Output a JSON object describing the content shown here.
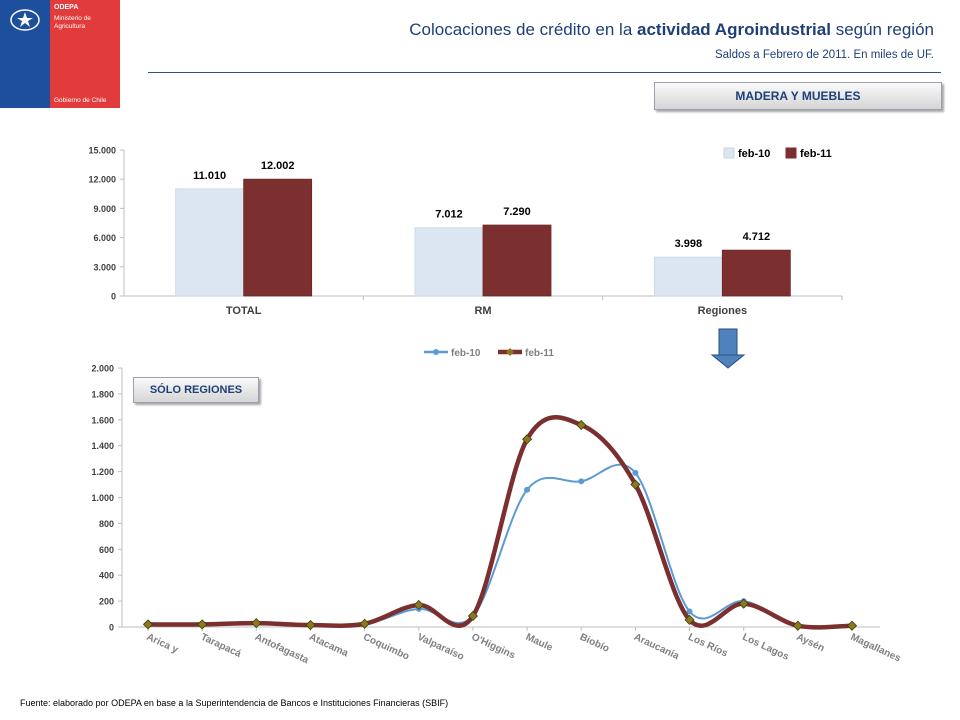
{
  "branding": {
    "org": "ODEPA",
    "ministry_line1": "Ministerio de",
    "ministry_line2": "Agricultura",
    "government": "Gobierno de Chile",
    "blue": "#1d4f9c",
    "red": "#e23b3b"
  },
  "header": {
    "title_pre": "Colocaciones de crédito en la ",
    "title_bold": "actividad Agroindustrial",
    "title_post": " según región",
    "subtitle": "Saldos a Febrero de 2011. En miles de UF."
  },
  "sector_button": "MADERA Y MUEBLES",
  "regions_button": "SÓLO REGIONES",
  "source": "Fuente: elaborado por ODEPA en base a la Superintendencia de Bancos e Instituciones Financieras (SBIF)",
  "chart_data": [
    {
      "type": "bar",
      "categories": [
        "TOTAL",
        "RM",
        "Regiones"
      ],
      "series": [
        {
          "name": "feb-10",
          "values": [
            11010,
            7012,
            3998
          ],
          "labels": [
            "11.010",
            "7.012",
            "3.998"
          ],
          "color": "#dce6f2"
        },
        {
          "name": "feb-11",
          "values": [
            12002,
            7290,
            4712
          ],
          "labels": [
            "12.002",
            "7.290",
            "4.712"
          ],
          "color": "#7b2f2f"
        }
      ],
      "ylim": [
        0,
        15000
      ],
      "yticks": [
        0,
        3000,
        6000,
        9000,
        12000,
        15000
      ],
      "ytick_labels": [
        "0",
        "3.000",
        "6.000",
        "9.000",
        "12.000",
        "15.000"
      ],
      "legend": "top-right",
      "grid": false
    },
    {
      "type": "line",
      "categories": [
        "Arica y",
        "Tarapacá",
        "Antofagasta",
        "Atacama",
        "Coquimbo",
        "Valparaíso",
        "O'Higgins",
        "Maule",
        "Biobío",
        "Araucanía",
        "Los Ríos",
        "Los Lagos",
        "Aysén",
        "Magallanes"
      ],
      "series": [
        {
          "name": "feb-10",
          "values": [
            15,
            15,
            25,
            10,
            20,
            140,
            85,
            1060,
            1125,
            1190,
            120,
            200,
            8,
            8
          ],
          "color": "#5b9bd5"
        },
        {
          "name": "feb-11",
          "values": [
            20,
            20,
            30,
            15,
            25,
            170,
            85,
            1450,
            1560,
            1100,
            55,
            180,
            10,
            10
          ],
          "color": "#7b2f2f"
        }
      ],
      "ylim": [
        0,
        2000
      ],
      "yticks": [
        0,
        200,
        400,
        600,
        800,
        1000,
        1200,
        1400,
        1600,
        1800,
        2000
      ],
      "ytick_labels": [
        "0",
        "200",
        "400",
        "600",
        "800",
        "1.000",
        "1.200",
        "1.400",
        "1.600",
        "1.800",
        "2.000"
      ],
      "legend": "top-center",
      "grid": false
    }
  ]
}
